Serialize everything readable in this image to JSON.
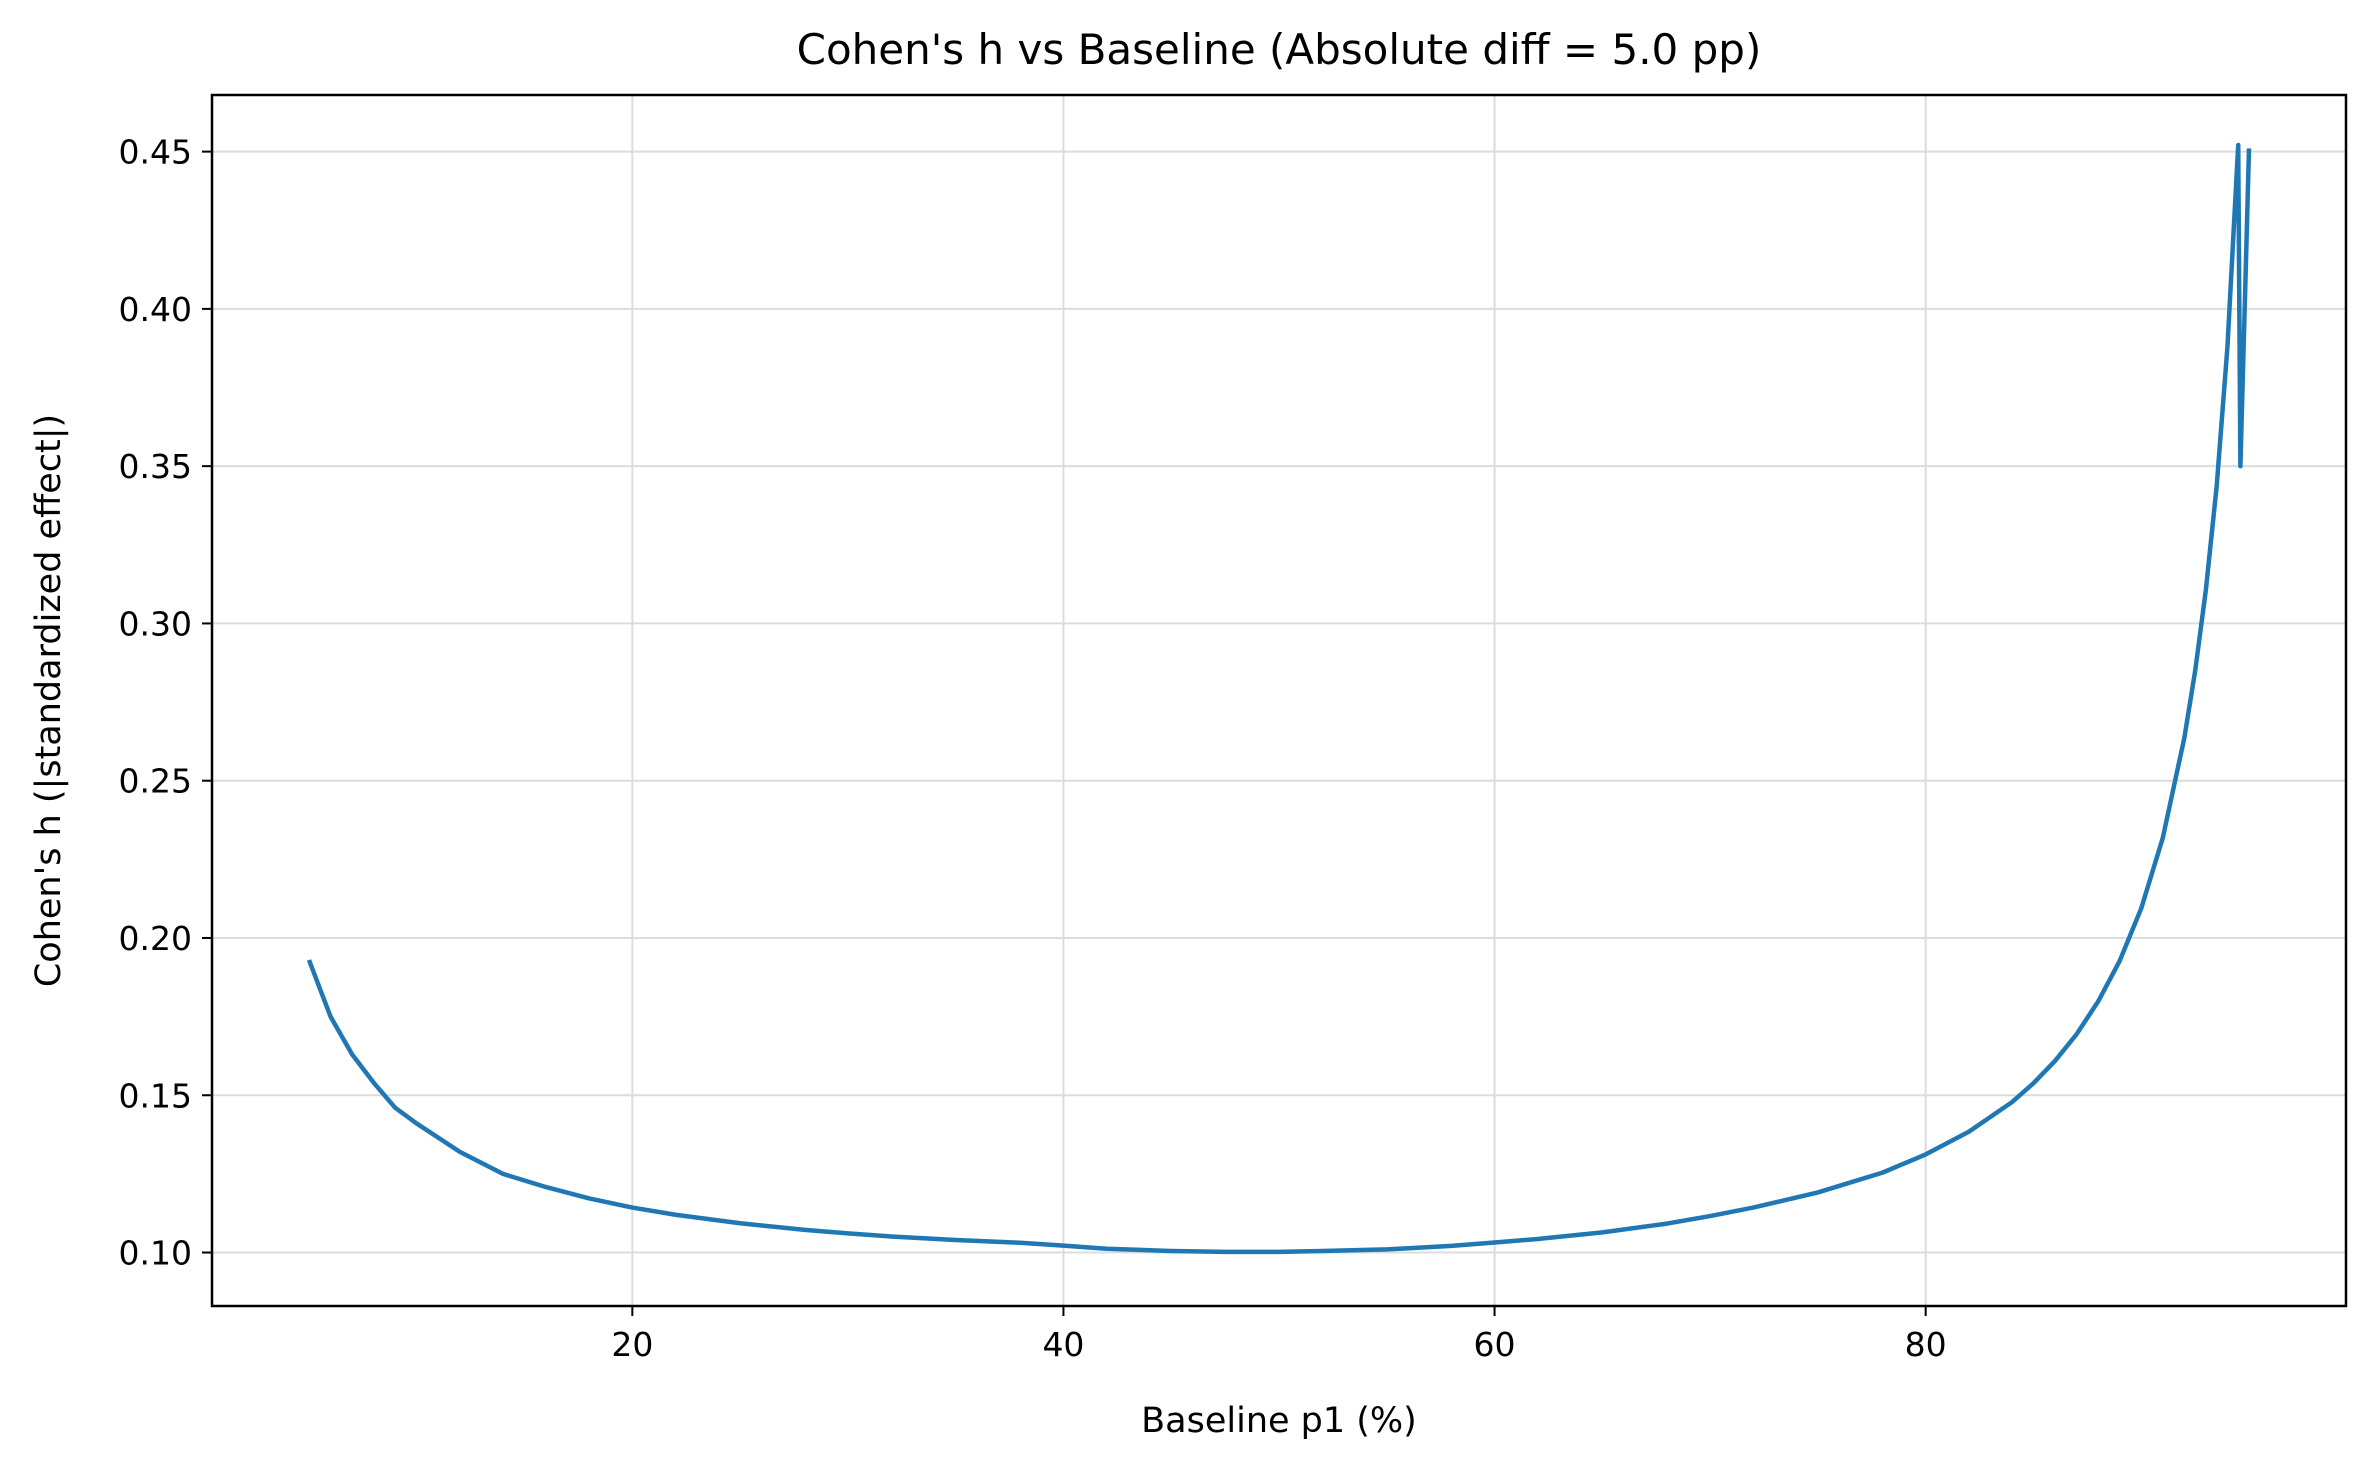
{
  "chart_data": {
    "type": "line",
    "title": "Cohen's h vs Baseline (Absolute diff = 5.0 pp)",
    "xlabel": "Baseline p1 (%)",
    "ylabel": "Cohen's h (|standardized effect|)",
    "xlim": [
      0.5,
      99.5
    ],
    "ylim": [
      0.083,
      0.468
    ],
    "xticks": [
      20,
      40,
      60,
      80
    ],
    "xtick_labels": [
      "20",
      "40",
      "60",
      "80"
    ],
    "yticks": [
      0.1,
      0.15,
      0.2,
      0.25,
      0.3,
      0.35,
      0.4,
      0.45
    ],
    "ytick_labels": [
      "0.10",
      "0.15",
      "0.20",
      "0.25",
      "0.30",
      "0.35",
      "0.40",
      "0.45"
    ],
    "grid": true,
    "legend": "none",
    "line_color": "#1f77b4",
    "series": [
      {
        "x": [
          5,
          6,
          7,
          8,
          9,
          10,
          12,
          14,
          16,
          18,
          20,
          22,
          25,
          28,
          30,
          32,
          35,
          38,
          40,
          42,
          45,
          47.5,
          50,
          52,
          55,
          58,
          60,
          62,
          65,
          68,
          70,
          72,
          75,
          78,
          80,
          82,
          84,
          85,
          86,
          87,
          88,
          89,
          90,
          91,
          92,
          92.5,
          93,
          93.5,
          94,
          94.5,
          94.6,
          94.8,
          95
        ],
        "y": [
          0.193,
          0.175,
          0.163,
          0.154,
          0.146,
          0.141,
          0.132,
          0.125,
          0.1208,
          0.1172,
          0.1143,
          0.112,
          0.1093,
          0.1072,
          0.1061,
          0.1051,
          0.104,
          0.1031,
          0.1022,
          0.1012,
          0.1005,
          0.1002,
          0.1002,
          0.1005,
          0.101,
          0.1021,
          0.1032,
          0.1043,
          0.1064,
          0.1092,
          0.1116,
          0.1143,
          0.1191,
          0.1254,
          0.1312,
          0.1384,
          0.1478,
          0.1538,
          0.1609,
          0.1694,
          0.1798,
          0.1927,
          0.2094,
          0.2318,
          0.2636,
          0.2848,
          0.3107,
          0.3436,
          0.3879,
          0.4521,
          0.35,
          0.4,
          0.451
        ]
      }
    ]
  }
}
